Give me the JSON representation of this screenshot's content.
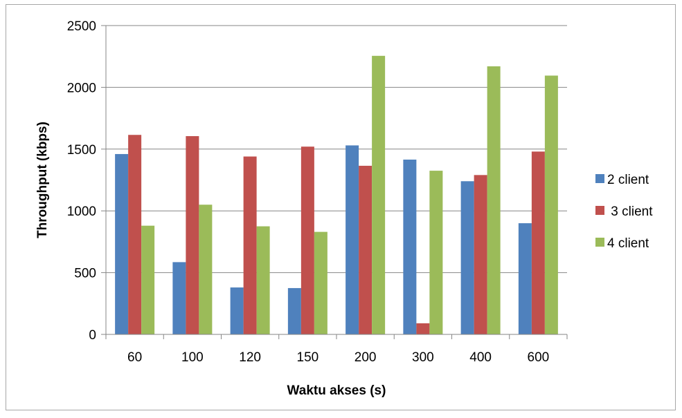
{
  "chart_data": {
    "type": "bar",
    "title": "",
    "xlabel": "Waktu akses (s)",
    "ylabel": "Throughput (kbps)",
    "categories": [
      "60",
      "100",
      "120",
      "150",
      "200",
      "300",
      "400",
      "600"
    ],
    "ylim": [
      0,
      2500
    ],
    "yticks": [
      "0",
      "500",
      "1000",
      "1500",
      "2000",
      "2500"
    ],
    "grid": true,
    "legend_position": "right",
    "series": [
      {
        "name": "2 client",
        "color": "#4f81bd",
        "values": [
          1460,
          585,
          380,
          375,
          1530,
          1415,
          1240,
          900
        ]
      },
      {
        "name": " 3 client",
        "color": "#c0504d",
        "values": [
          1615,
          1605,
          1440,
          1520,
          1365,
          90,
          1290,
          1480
        ]
      },
      {
        "name": "4 client",
        "color": "#9bbb59",
        "values": [
          880,
          1050,
          875,
          830,
          2255,
          1325,
          2170,
          2095
        ]
      }
    ]
  }
}
